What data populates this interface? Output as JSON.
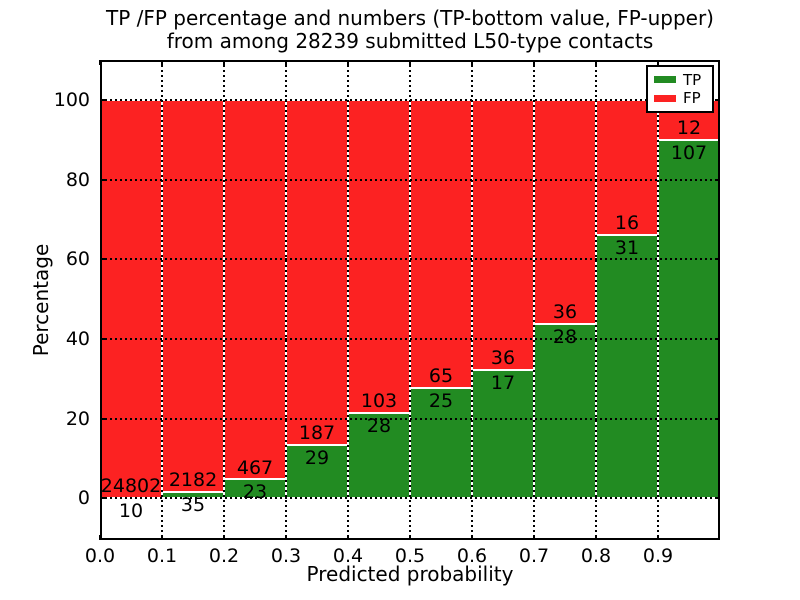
{
  "figure": {
    "title_line1": "TP /FP percentage and numbers (TP-bottom value, FP-upper)",
    "title_line2": "from among 28239 submitted L50-type contacts"
  },
  "chart_data": {
    "type": "bar",
    "stacked": true,
    "title": "TP /FP percentage and numbers (TP-bottom value, FP-upper) from among 28239 submitted L50-type contacts",
    "xlabel": "Predicted probability",
    "ylabel": "Percentage",
    "xlim": [
      0.0,
      1.0
    ],
    "ylim": [
      -10.5,
      110.0
    ],
    "bar_width": 0.1,
    "grid": "dotted",
    "legend_position": "upper right",
    "total_submitted_contacts": 28239,
    "bin_starts": [
      0.0,
      0.1,
      0.2,
      0.3,
      0.4,
      0.5,
      0.6,
      0.7,
      0.8,
      0.9
    ],
    "x_tick_labels": [
      "0.0",
      "0.1",
      "0.2",
      "0.3",
      "0.4",
      "0.5",
      "0.6",
      "0.7",
      "0.8",
      "0.9"
    ],
    "y_tick_values": [
      0,
      20,
      40,
      60,
      80,
      100
    ],
    "series": [
      {
        "name": "TP",
        "color": "#228b22",
        "counts": [
          10,
          35,
          23,
          29,
          28,
          25,
          17,
          28,
          31,
          107
        ],
        "percent": [
          0.04,
          1.58,
          4.69,
          13.43,
          21.37,
          27.78,
          32.08,
          43.75,
          65.96,
          89.92
        ]
      },
      {
        "name": "FP",
        "color": "#fc2222",
        "counts": [
          24802,
          2182,
          467,
          187,
          103,
          65,
          36,
          36,
          16,
          12
        ],
        "percent": [
          99.96,
          98.42,
          95.31,
          86.57,
          78.63,
          72.22,
          67.92,
          56.25,
          34.04,
          10.08
        ]
      }
    ],
    "legend": {
      "entries": [
        {
          "label": "TP",
          "color": "#228b22"
        },
        {
          "label": "FP",
          "color": "#fc2222"
        }
      ]
    }
  }
}
